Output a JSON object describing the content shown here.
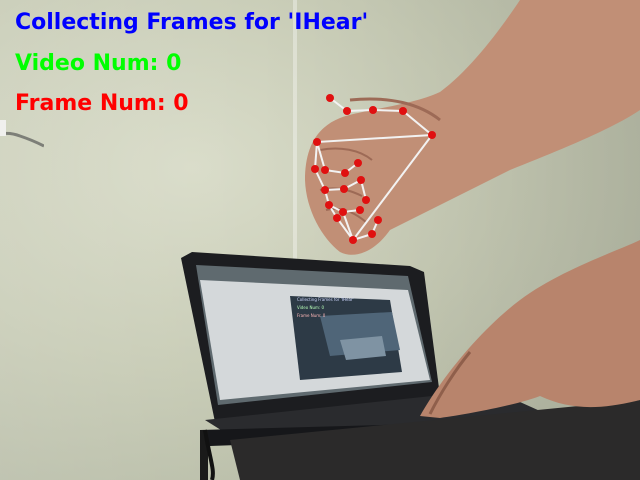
{
  "overlay": {
    "title": "Collecting Frames for 'IHear'",
    "video_label": "Video Num: 0",
    "frame_label": "Frame Num: 0"
  },
  "colors": {
    "title": "#0000ff",
    "video": "#00ff00",
    "frame": "#ff0000",
    "landmark": "#e01010",
    "connection": "#f2f2f2"
  },
  "laptop_screen": {
    "mini_title": "Collecting Frames for 'IHear'",
    "mini_video": "Video Num: 0",
    "mini_frame": "Frame Num: 0"
  }
}
